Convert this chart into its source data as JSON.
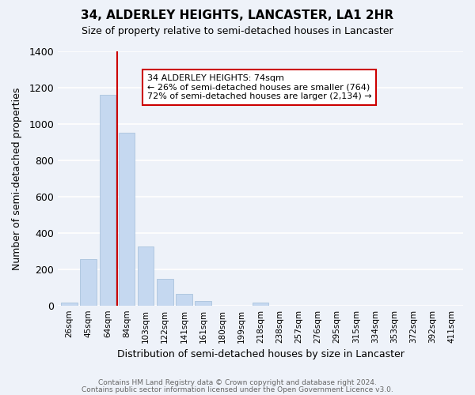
{
  "title": "34, ALDERLEY HEIGHTS, LANCASTER, LA1 2HR",
  "subtitle": "Size of property relative to semi-detached houses in Lancaster",
  "xlabel": "Distribution of semi-detached houses by size in Lancaster",
  "ylabel": "Number of semi-detached properties",
  "bar_color": "#c5d8f0",
  "bar_edge_color": "#a0bcd8",
  "bins": [
    "26sqm",
    "45sqm",
    "64sqm",
    "84sqm",
    "103sqm",
    "122sqm",
    "141sqm",
    "161sqm",
    "180sqm",
    "199sqm",
    "218sqm",
    "238sqm",
    "257sqm",
    "276sqm",
    "295sqm",
    "315sqm",
    "334sqm",
    "353sqm",
    "372sqm",
    "392sqm",
    "411sqm"
  ],
  "values": [
    15,
    255,
    1160,
    950,
    325,
    145,
    65,
    25,
    0,
    0,
    15,
    0,
    0,
    0,
    0,
    0,
    0,
    0,
    0,
    0,
    0
  ],
  "ylim": [
    0,
    1400
  ],
  "yticks": [
    0,
    200,
    400,
    600,
    800,
    1000,
    1200,
    1400
  ],
  "property_line_bin_index": 2.52,
  "annotation_text": "34 ALDERLEY HEIGHTS: 74sqm\n← 26% of semi-detached houses are smaller (764)\n72% of semi-detached houses are larger (2,134) →",
  "annotation_box_color": "white",
  "annotation_box_edge": "#cc0000",
  "line_color": "#cc0000",
  "footer1": "Contains HM Land Registry data © Crown copyright and database right 2024.",
  "footer2": "Contains public sector information licensed under the Open Government Licence v3.0.",
  "background_color": "#eef2f9",
  "grid_color": "white",
  "figsize": [
    6.0,
    5.0
  ],
  "dpi": 100
}
